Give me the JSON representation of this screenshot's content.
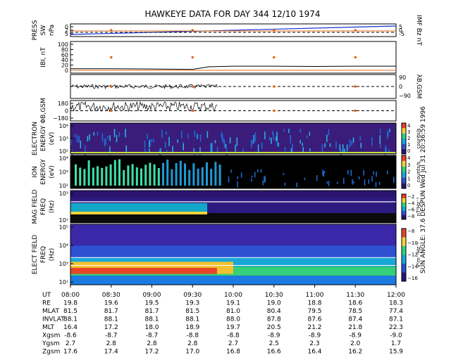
{
  "title": "HAWKEYE DATA FOR DAY 344 12/10 1974",
  "side_note": "SUN ANGLE: 37.6 DESPUN Wed Jul 31 20:36:59 1996",
  "colors": {
    "press": "#1030d0",
    "imf": "#e06a1a",
    "line": "#000000",
    "dot": "#e06a1a"
  },
  "panels": [
    {
      "id": "press",
      "label_left": [
        "PRESS",
        "SW",
        "nPa"
      ],
      "label_right": [
        "IMF Bz nT"
      ],
      "left_ticks": [
        "0",
        "2",
        "5"
      ],
      "right_ticks": [
        "5",
        "0",
        "-5"
      ]
    },
    {
      "id": "b",
      "label_left": [
        "IBI, nT"
      ],
      "left_ticks": [
        "100",
        "80",
        "60",
        "40",
        "20",
        "0"
      ]
    },
    {
      "id": "lambda",
      "label_right": [
        "λB,GSM"
      ],
      "right_ticks": [
        "90",
        "0",
        "−90"
      ]
    },
    {
      "id": "phi",
      "label_left": [
        "ΦB,GSM"
      ],
      "left_ticks": [
        "180",
        "0",
        "−180"
      ]
    },
    {
      "id": "electron",
      "label_left": [
        "ELECTRON",
        "ENERGY",
        "(eV)"
      ],
      "left_ticks": [
        "10⁴",
        "10³",
        "10²"
      ],
      "cbar_ticks": [
        "4",
        "3",
        "2",
        "1",
        "0"
      ],
      "cbar_unit": "counts/s"
    },
    {
      "id": "ion",
      "label_left": [
        "ION",
        "ENERGY",
        "(eV)"
      ],
      "left_ticks": [
        "10⁴",
        "10³",
        "10²"
      ],
      "cbar_ticks": [
        "4",
        "3",
        "2",
        "1",
        "0"
      ],
      "cbar_unit": "counts/s"
    },
    {
      "id": "mag",
      "label_left": [
        "MAG FIELD",
        "FREQ",
        "(Hz)"
      ],
      "left_ticks": [
        "10³",
        "10¹"
      ],
      "cbar_ticks": [
        "−2",
        "−4",
        "−6",
        "−8"
      ],
      "cbar_unit": "nT²Hz⁻¹"
    },
    {
      "id": "elec",
      "label_left": [
        "ELECT FIELD",
        "FREQ",
        "(Hz)"
      ],
      "left_ticks": [
        "10⁵",
        "10⁴",
        "10³",
        "10¹"
      ],
      "cbar_ticks": [
        "−8",
        "−10",
        "−12",
        "−14",
        "−16"
      ],
      "cbar_unit": "V²m⁻²Hz⁻¹"
    }
  ],
  "chart_data": {
    "type": "line",
    "x_times": [
      "08:00",
      "08:30",
      "09:00",
      "09:30",
      "10:00",
      "10:30",
      "11:00",
      "11:30",
      "12:00"
    ],
    "table": [
      {
        "label": "UT",
        "values": [
          "08:00",
          "08:30",
          "09:00",
          "09:30",
          "10:00",
          "10:30",
          "11:00",
          "11:30",
          "12:00"
        ]
      },
      {
        "label": "RE",
        "values": [
          "19.8",
          "19.6",
          "19.5",
          "19.3",
          "19.1",
          "19.0",
          "18.8",
          "18.6",
          "18.3"
        ]
      },
      {
        "label": "MLAT",
        "values": [
          "81.5",
          "81.7",
          "81.7",
          "81.5",
          "81.0",
          "80.4",
          "79.5",
          "78.5",
          "77.4"
        ]
      },
      {
        "label": "INVLAT",
        "values": [
          "88.1",
          "88.1",
          "88.1",
          "88.1",
          "88.0",
          "87.8",
          "87.6",
          "87.4",
          "87.1"
        ]
      },
      {
        "label": "MLT",
        "values": [
          "16.4",
          "17.2",
          "18.0",
          "18.9",
          "19.7",
          "20.5",
          "21.2",
          "21.8",
          "22.3"
        ]
      },
      {
        "label": "Xgsm",
        "values": [
          "-8.6",
          "-8.7",
          "-8.7",
          "-8.8",
          "-8.8",
          "-8.9",
          "-8.9",
          "-8.9",
          "-9.0"
        ]
      },
      {
        "label": "Ygsm",
        "values": [
          "2.7",
          "2.8",
          "2.8",
          "2.8",
          "2.7",
          "2.5",
          "2.3",
          "2.0",
          "1.7"
        ]
      },
      {
        "label": "Zgsm",
        "values": [
          "17.6",
          "17.4",
          "17.2",
          "17.0",
          "16.8",
          "16.6",
          "16.4",
          "16.2",
          "15.9"
        ]
      }
    ],
    "series": [
      {
        "name": "IBI",
        "panel": "b",
        "x": [
          0,
          0.5,
          1.0,
          1.5,
          1.7,
          2.0,
          2.5,
          3.0,
          3.5,
          4.0
        ],
        "y": [
          14,
          14,
          13,
          12,
          20,
          22,
          22,
          21,
          22,
          22
        ]
      },
      {
        "name": "PRESS SW",
        "panel": "press",
        "x": [
          0,
          4
        ],
        "y": [
          0,
          8
        ]
      }
    ],
    "ylim_b": [
      0,
      100
    ]
  }
}
